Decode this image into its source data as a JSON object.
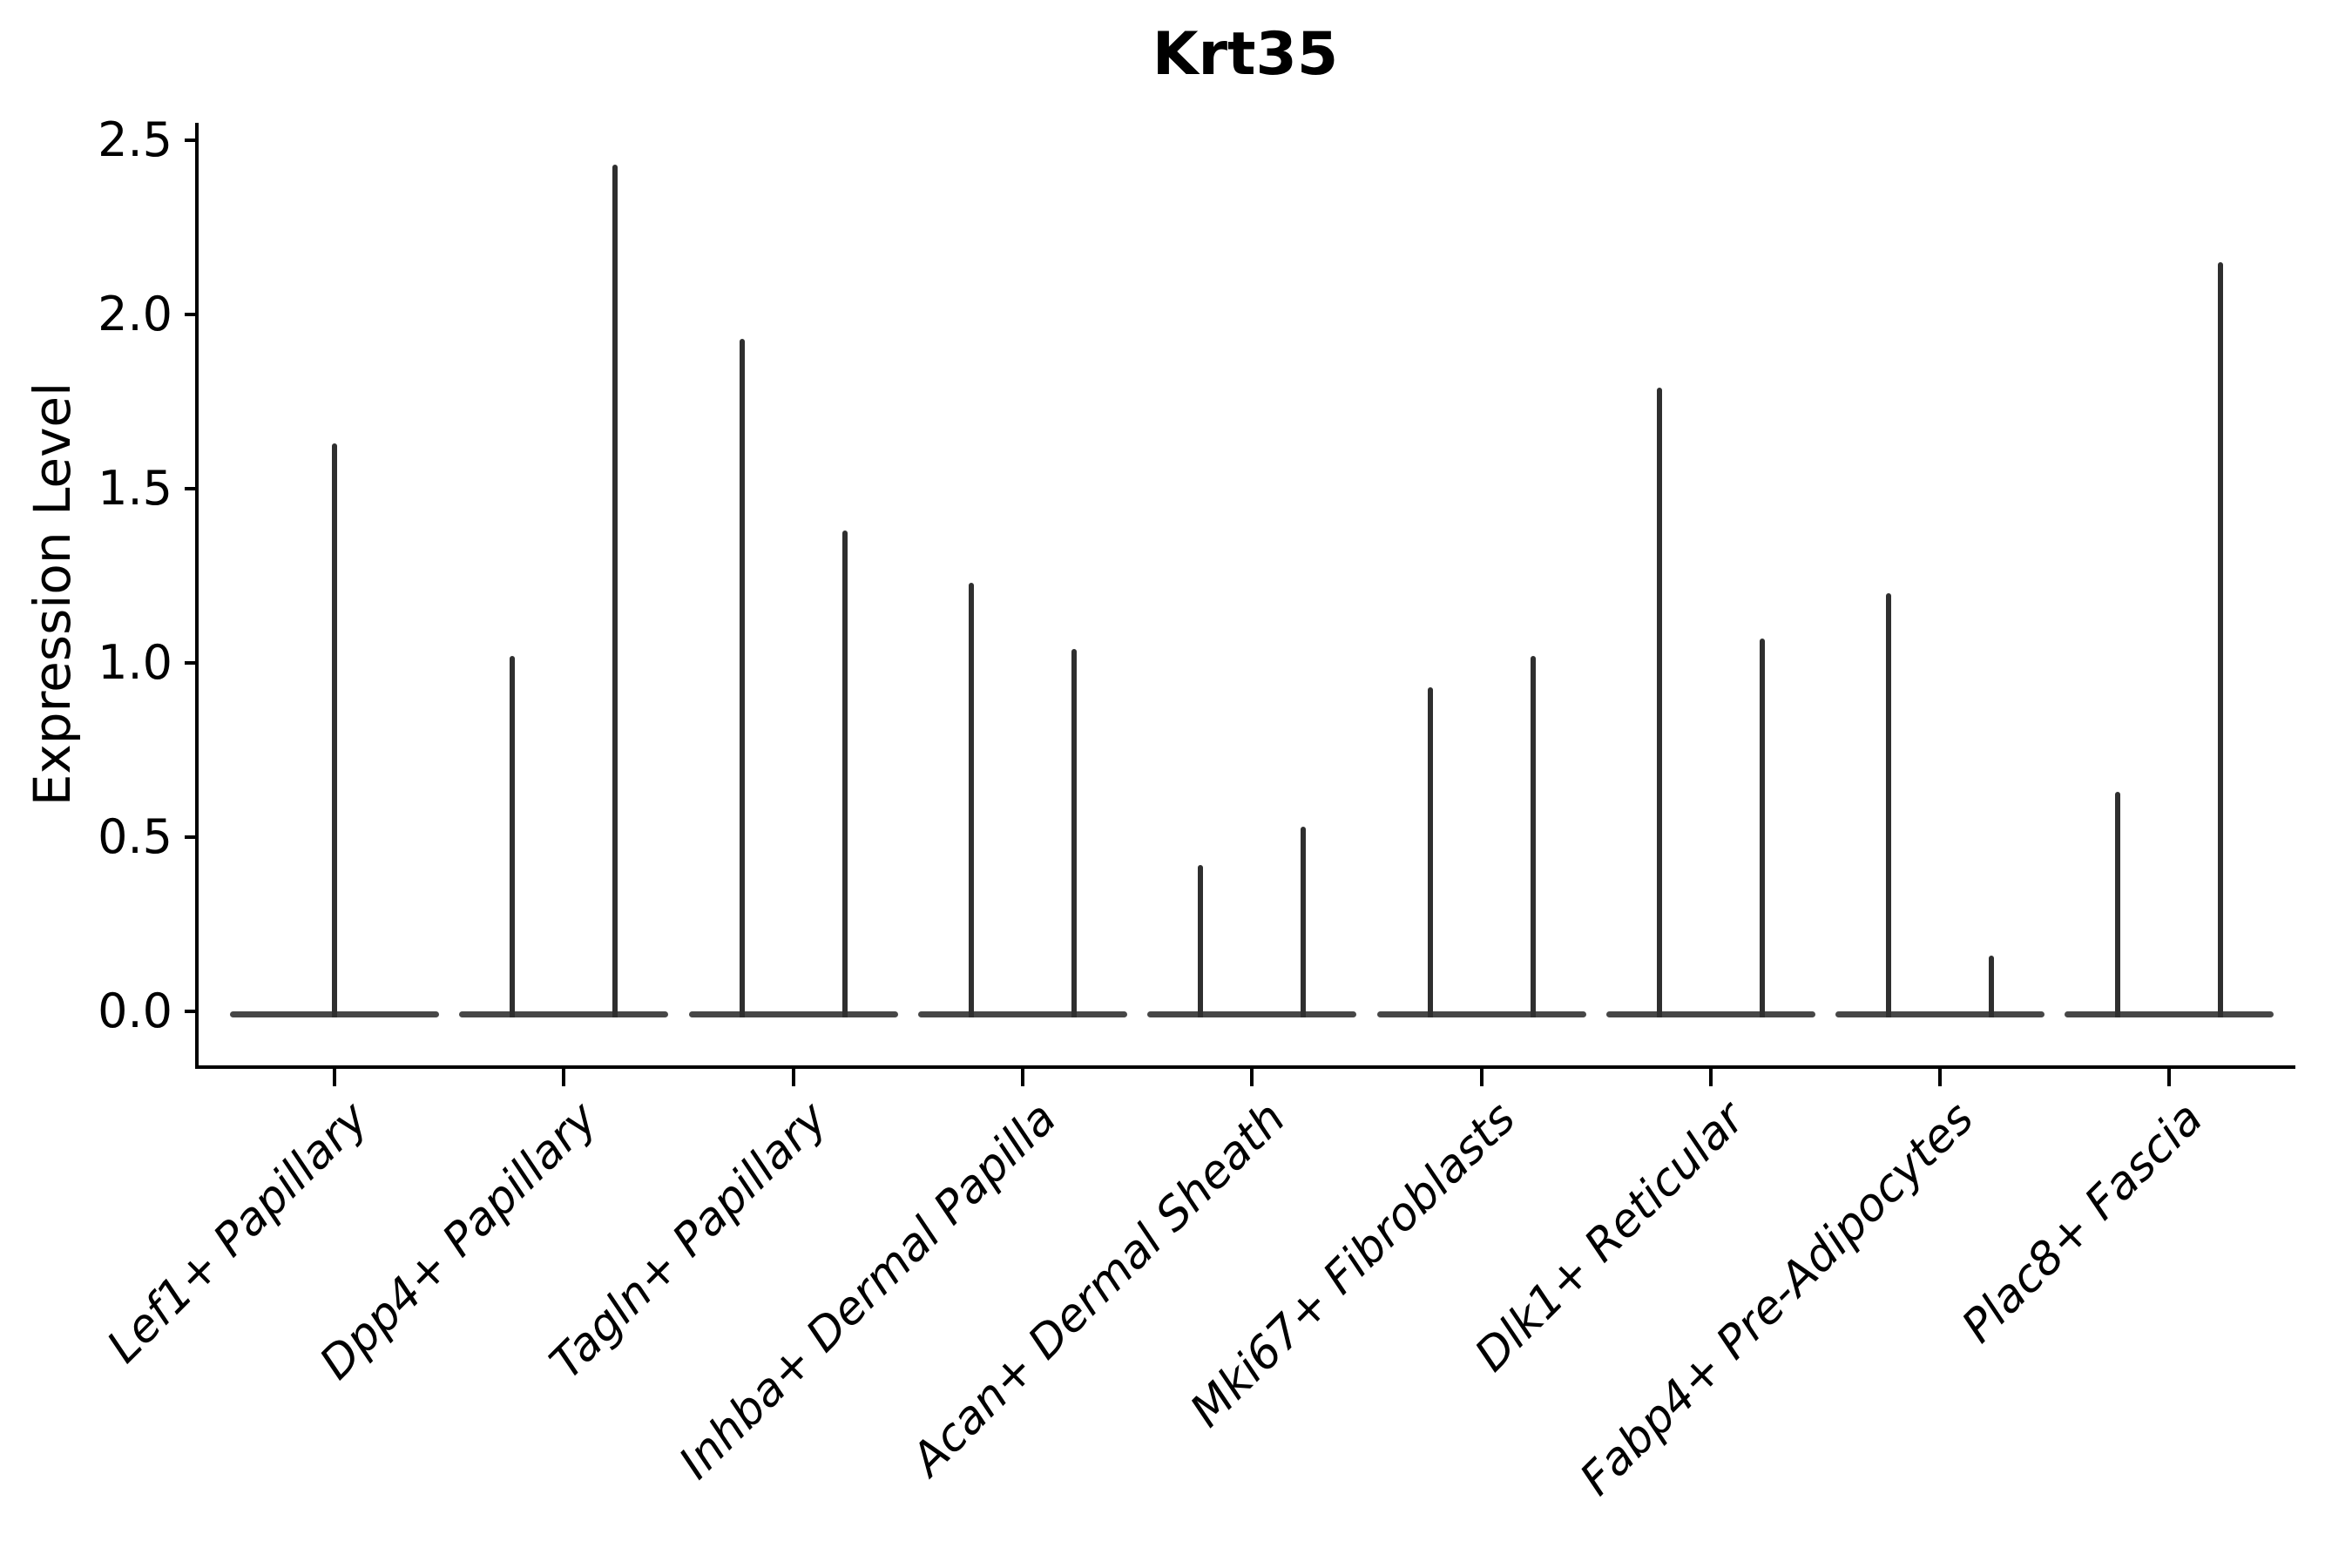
{
  "chart_data": {
    "type": "violin",
    "title": "Krt35",
    "xlabel": "",
    "ylabel": "Expression Level",
    "ylim": [
      -0.1,
      2.55
    ],
    "grid": false,
    "legend": null,
    "yticks": [
      2.5,
      2.0,
      1.5,
      1.0,
      0.5,
      0.0
    ],
    "ytick_labels": [
      "2.5",
      "2.0",
      "1.5",
      "1.0",
      "0.5",
      "0.0"
    ],
    "categories": [
      "Lef1+ Papillary",
      "Dpp4+ Papillary",
      "Tagln+ Papillary",
      "Inhba+ Dermal Papilla",
      "Acan+ Dermal Sheath",
      "Mki67+ Fibroblasts",
      "Dlk1+ Reticular",
      "Fabp4+ Pre-Adipocytes",
      "Plac8+ Fascia"
    ],
    "violins": [
      {
        "category": "Lef1+ Papillary",
        "spike_maxima": [
          1.63
        ]
      },
      {
        "category": "Dpp4+ Papillary",
        "spike_maxima": [
          1.02,
          2.43
        ]
      },
      {
        "category": "Tagln+ Papillary",
        "spike_maxima": [
          1.93,
          1.38
        ]
      },
      {
        "category": "Inhba+ Dermal Papilla",
        "spike_maxima": [
          1.23,
          1.04
        ]
      },
      {
        "category": "Acan+ Dermal Sheath",
        "spike_maxima": [
          0.42,
          0.53
        ]
      },
      {
        "category": "Mki67+ Fibroblasts",
        "spike_maxima": [
          0.93,
          1.02
        ]
      },
      {
        "category": "Dlk1+ Reticular",
        "spike_maxima": [
          1.79,
          1.07
        ]
      },
      {
        "category": "Fabp4+ Pre-Adipocytes",
        "spike_maxima": [
          1.2,
          0.16
        ]
      },
      {
        "category": "Plac8+ Fascia",
        "spike_maxima": [
          0.63,
          2.15
        ]
      }
    ],
    "notes": "Zero-inflated expression violins: each violin collapses to a wide flat base at 0 with a thin vertical spike reaching its maximum value; categories with two spikes hold two side-by-side violins."
  },
  "colors": {
    "axis": "#000000",
    "violin_base": "#474747",
    "violin_spike": "#2f2f2f",
    "background": "#ffffff"
  }
}
